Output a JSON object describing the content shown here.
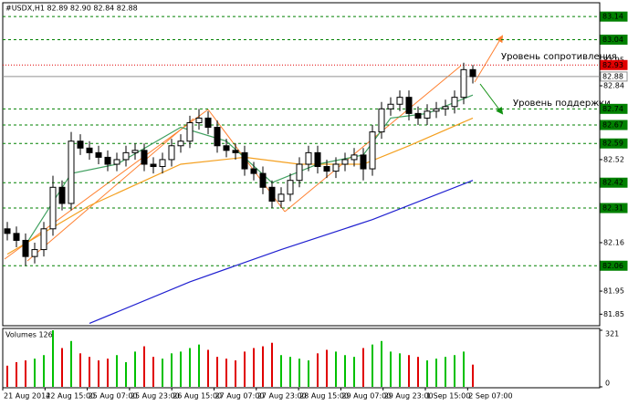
{
  "chart_data": {
    "type": "candlestick",
    "title": "#USDX,H1  82.89 82.90 82.84 82.88",
    "volume_title": "Volumes 126",
    "annotations": [
      "Уровень сопротивления",
      "Уровень поддержки"
    ],
    "categories": [
      "21 Aug 2014",
      "22 Aug 15:00",
      "25 Aug 07:00",
      "25 Aug 23:00",
      "26 Aug 15:00",
      "27 Aug 07:00",
      "27 Aug 23:00",
      "28 Aug 15:00",
      "29 Aug 07:00",
      "29 Aug 23:00",
      "1 Sep 15:00",
      "2 Sep 07:00"
    ],
    "ohlc": {
      "open": [
        82.22,
        82.2,
        82.17,
        82.1,
        82.13,
        82.22,
        82.4,
        82.33,
        82.6,
        82.57,
        82.55,
        82.53,
        82.5,
        82.52,
        82.55,
        82.56,
        82.5,
        82.49,
        82.52,
        82.58,
        82.6,
        82.68,
        82.7,
        82.66,
        82.58,
        82.56,
        82.55,
        82.48,
        82.46,
        82.4,
        82.34,
        82.37,
        82.43,
        82.5,
        82.55,
        82.49,
        82.47,
        82.5,
        82.52,
        82.54,
        82.48,
        82.64,
        82.74,
        82.76,
        82.79,
        82.72,
        82.7,
        82.73,
        82.74,
        82.75,
        82.79,
        82.91
      ],
      "high": [
        82.25,
        82.23,
        82.2,
        82.16,
        82.25,
        82.45,
        82.43,
        82.64,
        82.63,
        82.6,
        82.58,
        82.56,
        82.55,
        82.58,
        82.59,
        82.59,
        82.53,
        82.55,
        82.61,
        82.63,
        82.71,
        82.74,
        82.73,
        82.69,
        82.61,
        82.59,
        82.58,
        82.51,
        82.49,
        82.43,
        82.4,
        82.46,
        82.53,
        82.58,
        82.58,
        82.52,
        82.53,
        82.55,
        82.57,
        82.57,
        82.67,
        82.77,
        82.79,
        82.82,
        82.82,
        82.75,
        82.76,
        82.77,
        82.78,
        82.82,
        82.94,
        82.93
      ],
      "low": [
        82.17,
        82.14,
        82.06,
        82.07,
        82.1,
        82.19,
        82.3,
        82.3,
        82.54,
        82.52,
        82.5,
        82.47,
        82.47,
        82.49,
        82.52,
        82.47,
        82.46,
        82.46,
        82.49,
        82.55,
        82.57,
        82.65,
        82.63,
        82.55,
        82.53,
        82.52,
        82.45,
        82.43,
        82.37,
        82.31,
        82.31,
        82.34,
        82.4,
        82.47,
        82.46,
        82.44,
        82.44,
        82.47,
        82.49,
        82.43,
        82.45,
        82.61,
        82.71,
        82.73,
        82.69,
        82.67,
        82.67,
        82.7,
        82.71,
        82.72,
        82.76,
        82.85
      ],
      "close": [
        82.2,
        82.17,
        82.1,
        82.13,
        82.22,
        82.4,
        82.33,
        82.6,
        82.57,
        82.55,
        82.53,
        82.5,
        82.52,
        82.55,
        82.56,
        82.5,
        82.49,
        82.52,
        82.58,
        82.6,
        82.68,
        82.7,
        82.66,
        82.58,
        82.56,
        82.55,
        82.48,
        82.46,
        82.4,
        82.34,
        82.37,
        82.43,
        82.5,
        82.55,
        82.49,
        82.47,
        82.5,
        82.52,
        82.54,
        82.48,
        82.64,
        82.74,
        82.76,
        82.79,
        82.72,
        82.7,
        82.73,
        82.74,
        82.75,
        82.79,
        82.91,
        82.88
      ]
    },
    "volumes": [
      120,
      140,
      150,
      160,
      180,
      321,
      220,
      260,
      190,
      170,
      150,
      160,
      180,
      140,
      200,
      230,
      170,
      160,
      190,
      200,
      220,
      240,
      210,
      170,
      160,
      150,
      200,
      220,
      230,
      250,
      180,
      170,
      160,
      150,
      190,
      210,
      200,
      180,
      170,
      220,
      240,
      260,
      200,
      190,
      180,
      170,
      150,
      160,
      170,
      180,
      200,
      126
    ],
    "up_color": "#00c000",
    "down_color": "#e00000",
    "moving_averages": [
      {
        "color": "#2020d0",
        "x": [
          9,
          20,
          30,
          40,
          51
        ],
        "values": [
          81.81,
          81.99,
          82.13,
          82.26,
          82.43
        ]
      },
      {
        "color": "#f4a020",
        "x": [
          0,
          9,
          19,
          26,
          32,
          39,
          44,
          51
        ],
        "values": [
          82.11,
          82.32,
          82.5,
          82.53,
          82.5,
          82.5,
          82.58,
          82.7
        ]
      },
      {
        "color": "#40a060",
        "x": [
          2,
          7,
          12,
          19,
          24,
          29,
          34,
          39,
          42,
          46,
          51
        ],
        "values": [
          82.15,
          82.46,
          82.5,
          82.66,
          82.6,
          82.42,
          82.5,
          82.54,
          82.7,
          82.72,
          82.8
        ]
      }
    ],
    "levels": [
      {
        "value": 83.14,
        "color": "#008000"
      },
      {
        "value": 83.04,
        "color": "#008000"
      },
      {
        "value": 82.74,
        "color": "#008000"
      },
      {
        "value": 82.67,
        "color": "#008000"
      },
      {
        "value": 82.59,
        "color": "#008000"
      },
      {
        "value": 82.42,
        "color": "#008000"
      },
      {
        "value": 82.31,
        "color": "#008000"
      },
      {
        "value": 82.06,
        "color": "#008000"
      }
    ],
    "resistance": {
      "value": 82.93,
      "color": "#e00000"
    },
    "bid": 82.88,
    "ylim": [
      81.8,
      83.2
    ],
    "yticks": [
      82.95,
      82.84,
      82.52,
      82.16,
      81.95,
      81.85
    ],
    "vlim": [
      0,
      321
    ],
    "vticks": [
      321,
      0
    ]
  }
}
